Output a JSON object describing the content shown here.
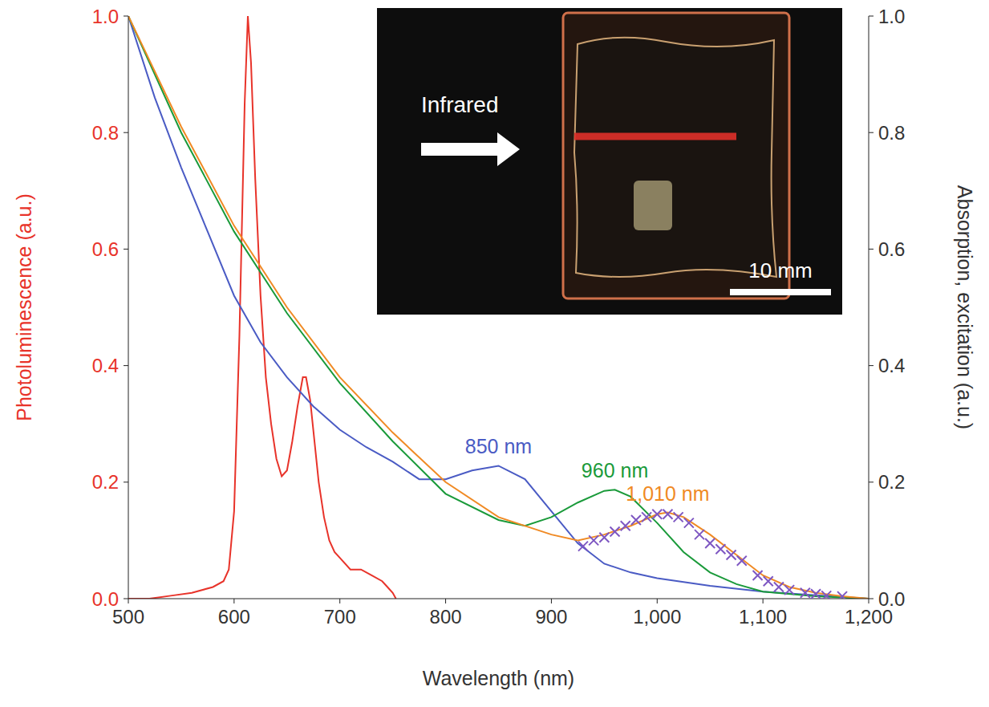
{
  "chart_data": {
    "type": "line",
    "x_label": "Wavelength (nm)",
    "y_label": "Photoluminescence (a.u.)",
    "y2_label": "Absorption, excitation (a.u.)",
    "xlim": [
      500,
      1200
    ],
    "xticks": [
      500,
      600,
      700,
      800,
      900,
      {
        "value": 1000,
        "label": "1,000"
      },
      {
        "value": 1100,
        "label": "1,100"
      },
      {
        "value": 1200,
        "label": "1,200"
      }
    ],
    "ylim": [
      0,
      1
    ],
    "yticks": [
      {
        "value": 0,
        "label": "0.0"
      },
      {
        "value": 0.2,
        "label": "0.2"
      },
      {
        "value": 0.4,
        "label": "0.4"
      },
      {
        "value": 0.6,
        "label": "0.6"
      },
      {
        "value": 0.8,
        "label": "0.8"
      },
      {
        "value": 1,
        "label": "1.0"
      }
    ],
    "y2lim": [
      0,
      1
    ],
    "y2ticks": [
      {
        "value": 0,
        "label": "0.0"
      },
      {
        "value": 0.2,
        "label": "0.2"
      },
      {
        "value": 0.4,
        "label": "0.4"
      },
      {
        "value": 0.6,
        "label": "0.6"
      },
      {
        "value": 0.8,
        "label": "0.8"
      },
      {
        "value": 1,
        "label": "1.0"
      }
    ],
    "grid": false,
    "annotations": [
      "Infrared",
      "10 mm"
    ],
    "series": [
      {
        "color": "#e8332a",
        "type": "line",
        "line_style": "solid",
        "x": [
          500,
          520,
          540,
          560,
          580,
          590,
          595,
          600,
          605,
          610,
          613,
          616,
          620,
          625,
          630,
          635,
          640,
          645,
          650,
          655,
          660,
          665,
          668,
          672,
          676,
          680,
          685,
          690,
          695,
          700,
          710,
          720,
          730,
          740,
          745,
          750,
          753
        ],
        "values": [
          0,
          0,
          0.005,
          0.01,
          0.02,
          0.03,
          0.05,
          0.15,
          0.45,
          0.85,
          1.0,
          0.92,
          0.72,
          0.52,
          0.38,
          0.3,
          0.24,
          0.21,
          0.22,
          0.27,
          0.33,
          0.38,
          0.38,
          0.34,
          0.27,
          0.2,
          0.14,
          0.1,
          0.08,
          0.07,
          0.05,
          0.05,
          0.04,
          0.03,
          0.02,
          0.01,
          0
        ]
      },
      {
        "name": "850 nm",
        "color": "#4a5bc4",
        "type": "line",
        "line_style": "solid",
        "axis": "y2",
        "x": [
          500,
          525,
          550,
          575,
          600,
          625,
          650,
          675,
          700,
          725,
          750,
          775,
          800,
          825,
          850,
          875,
          900,
          925,
          950,
          975,
          1000,
          1050,
          1100,
          1150,
          1200
        ],
        "values": [
          1.0,
          0.86,
          0.74,
          0.63,
          0.52,
          0.44,
          0.38,
          0.33,
          0.29,
          0.26,
          0.235,
          0.205,
          0.205,
          0.22,
          0.228,
          0.205,
          0.15,
          0.095,
          0.06,
          0.045,
          0.035,
          0.022,
          0.012,
          0.006,
          0
        ]
      },
      {
        "name": "960 nm",
        "color": "#1a9a3a",
        "type": "line",
        "line_style": "solid",
        "axis": "y2",
        "x": [
          500,
          550,
          600,
          650,
          700,
          750,
          800,
          850,
          875,
          900,
          925,
          950,
          960,
          975,
          1000,
          1025,
          1050,
          1075,
          1100,
          1150,
          1200
        ],
        "values": [
          1.0,
          0.8,
          0.63,
          0.49,
          0.37,
          0.27,
          0.18,
          0.135,
          0.125,
          0.14,
          0.165,
          0.185,
          0.187,
          0.175,
          0.13,
          0.08,
          0.045,
          0.025,
          0.012,
          0.004,
          0
        ]
      },
      {
        "name": "1,010 nm",
        "color": "#f08a24",
        "type": "line",
        "line_style": "solid",
        "axis": "y2",
        "x": [
          500,
          550,
          600,
          650,
          700,
          750,
          800,
          850,
          900,
          925,
          950,
          975,
          1000,
          1010,
          1025,
          1050,
          1075,
          1100,
          1125,
          1150,
          1175,
          1200
        ],
        "values": [
          1.0,
          0.81,
          0.64,
          0.5,
          0.38,
          0.285,
          0.2,
          0.14,
          0.11,
          0.1,
          0.11,
          0.125,
          0.145,
          0.148,
          0.14,
          0.11,
          0.075,
          0.04,
          0.02,
          0.01,
          0.004,
          0
        ]
      },
      {
        "color": "#7e57c2",
        "type": "scatter",
        "marker": "x",
        "axis": "y2",
        "x": [
          930,
          940,
          950,
          960,
          970,
          980,
          990,
          1000,
          1010,
          1020,
          1030,
          1040,
          1050,
          1060,
          1070,
          1080,
          1095,
          1105,
          1115,
          1125,
          1140,
          1150,
          1160,
          1175
        ],
        "values": [
          0.09,
          0.1,
          0.105,
          0.115,
          0.125,
          0.135,
          0.14,
          0.145,
          0.145,
          0.14,
          0.13,
          0.11,
          0.095,
          0.085,
          0.075,
          0.065,
          0.04,
          0.03,
          0.02,
          0.015,
          0.01,
          0.008,
          0.005,
          0.004
        ]
      }
    ]
  }
}
